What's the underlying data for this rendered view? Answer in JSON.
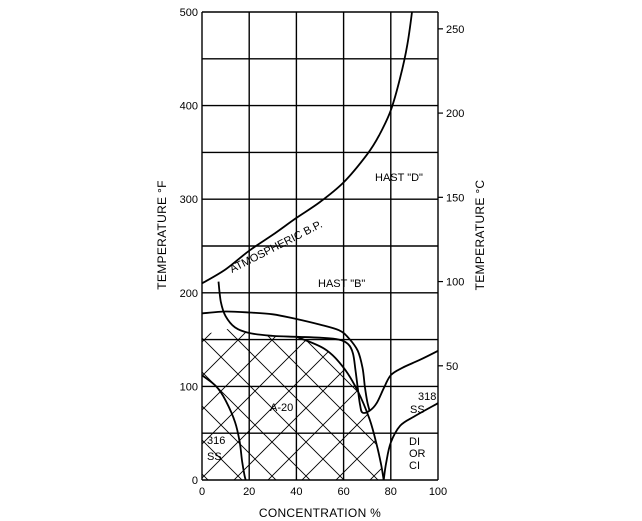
{
  "chart_data": {
    "type": "line",
    "xlabel": "CONCENTRATION %",
    "ylabel_left": "TEMPERATURE °F",
    "ylabel_right": "TEMPERATURE °C",
    "xlim": [
      0,
      100
    ],
    "ylim_left": [
      0,
      500
    ],
    "x_ticks": [
      0,
      20,
      40,
      60,
      80,
      100
    ],
    "y_ticks_left": [
      0,
      100,
      200,
      300,
      400,
      500
    ],
    "y_ticks_right": [
      50,
      100,
      150,
      200,
      250
    ],
    "grid": true,
    "curves": [
      {
        "label": "ATMOSPHERIC B.P.",
        "points": [
          [
            0,
            210
          ],
          [
            10,
            225
          ],
          [
            20,
            245
          ],
          [
            30,
            262
          ],
          [
            40,
            280
          ],
          [
            50,
            297
          ],
          [
            60,
            318
          ],
          [
            70,
            348
          ],
          [
            75,
            368
          ],
          [
            80,
            395
          ],
          [
            84,
            430
          ],
          [
            87,
            465
          ],
          [
            89,
            500
          ]
        ]
      },
      {
        "label": "HAST \"B\" lower bound",
        "points": [
          [
            7,
            212
          ],
          [
            8,
            190
          ],
          [
            10,
            175
          ],
          [
            14,
            163
          ],
          [
            20,
            157
          ],
          [
            30,
            154
          ],
          [
            40,
            153
          ],
          [
            50,
            152
          ],
          [
            58,
            150
          ],
          [
            62,
            145
          ],
          [
            64,
            135
          ],
          [
            65,
            118
          ],
          [
            66,
            98
          ],
          [
            67,
            80
          ],
          [
            68,
            72
          ],
          [
            71,
            74
          ],
          [
            74,
            82
          ],
          [
            77,
            98
          ],
          [
            80,
            112
          ],
          [
            85,
            120
          ],
          [
            92,
            128
          ],
          [
            100,
            138
          ]
        ]
      },
      {
        "label": "HAST \"D\" lower bound",
        "points": [
          [
            0,
            178
          ],
          [
            10,
            180
          ],
          [
            20,
            179
          ],
          [
            30,
            177
          ],
          [
            40,
            172
          ],
          [
            50,
            166
          ],
          [
            58,
            160
          ],
          [
            62,
            152
          ],
          [
            66,
            138
          ],
          [
            68,
            120
          ],
          [
            69,
            100
          ],
          [
            70,
            84
          ],
          [
            71,
            74
          ]
        ]
      },
      {
        "label": "A-20 right boundary",
        "points": [
          [
            40,
            153
          ],
          [
            52,
            140
          ],
          [
            60,
            120
          ],
          [
            66,
            95
          ],
          [
            71,
            65
          ],
          [
            74,
            38
          ],
          [
            76,
            15
          ],
          [
            77,
            0
          ]
        ]
      },
      {
        "label": "316 SS boundary",
        "points": [
          [
            0,
            112
          ],
          [
            6,
            100
          ],
          [
            10,
            85
          ],
          [
            14,
            62
          ],
          [
            16,
            40
          ],
          [
            17,
            20
          ],
          [
            18,
            5
          ],
          [
            18.5,
            0
          ]
        ]
      },
      {
        "label": "DI OR CI boundary",
        "points": [
          [
            77,
            0
          ],
          [
            78,
            18
          ],
          [
            80,
            40
          ],
          [
            84,
            58
          ],
          [
            90,
            68
          ],
          [
            100,
            82
          ]
        ]
      }
    ],
    "hatched_region_label": "A-20",
    "region_labels": {
      "hast_d": "HAST \"D\"",
      "hast_b": "HAST \"B\"",
      "a20": "A-20",
      "ss316_line1": "316",
      "ss316_line2": "SS",
      "ss318_line1": "318",
      "ss318_line2": "SS",
      "dici_line1": "DI",
      "dici_line2": "OR",
      "dici_line3": "CI"
    }
  }
}
